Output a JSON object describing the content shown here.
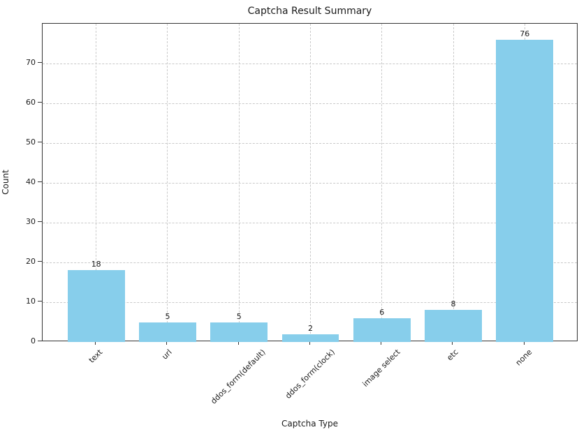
{
  "chart_data": {
    "type": "bar",
    "title": "Captcha Result Summary",
    "xlabel": "Captcha Type",
    "ylabel": "Count",
    "categories": [
      "text",
      "url",
      "ddos_form(default)",
      "ddos_form(clock)",
      "image select",
      "etc",
      "none"
    ],
    "values": [
      18,
      5,
      5,
      2,
      6,
      8,
      76
    ],
    "value_labels": [
      "18",
      "5",
      "5",
      "2",
      "6",
      "8",
      "76"
    ],
    "yticks": [
      0,
      10,
      20,
      30,
      40,
      50,
      60,
      70
    ],
    "ylim": [
      0,
      80
    ],
    "bar_color": "#87CEEB",
    "grid": {
      "style": "dashed",
      "color": "#c9c9c9",
      "axes": "both"
    },
    "x_tick_label_rotation_deg": 45,
    "legend": null
  }
}
